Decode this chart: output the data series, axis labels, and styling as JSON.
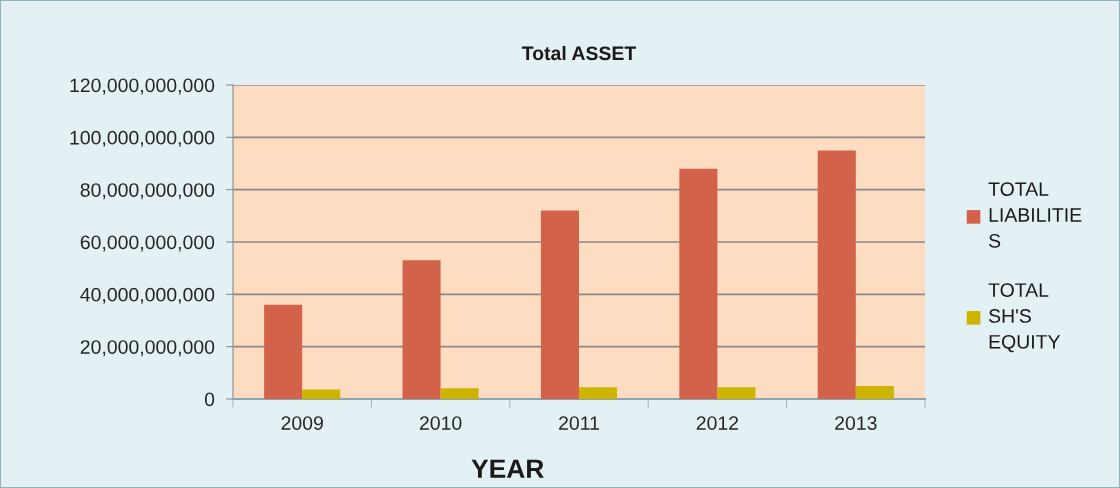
{
  "chart_data": {
    "type": "bar",
    "title": "Total ASSET",
    "xlabel": "YEAR",
    "categories": [
      "2009",
      "2010",
      "2011",
      "2012",
      "2013"
    ],
    "series": [
      {
        "name": "TOTAL LIABILITIES",
        "color": "#d2634a",
        "values": [
          36000000000,
          53000000000,
          72000000000,
          88000000000,
          95000000000
        ]
      },
      {
        "name": "TOTAL SH'S EQUITY",
        "color": "#cdb400",
        "values": [
          3600000000,
          4100000000,
          4500000000,
          4500000000,
          5000000000
        ]
      }
    ],
    "ylim": [
      0,
      120000000000
    ],
    "yticks": [
      0,
      {
        "value": 20000000000,
        "label": "20,000,000,000"
      },
      {
        "value": 40000000000,
        "label": "40,000,000,000"
      },
      {
        "value": 60000000000,
        "label": "60,000,000,000"
      },
      {
        "value": 80000000000,
        "label": "80,000,000,000"
      },
      {
        "value": 100000000000,
        "label": "100,000,000,000"
      },
      {
        "value": 120000000000,
        "label": "120,000,000,000"
      }
    ],
    "grid": "y",
    "legend": "right"
  }
}
